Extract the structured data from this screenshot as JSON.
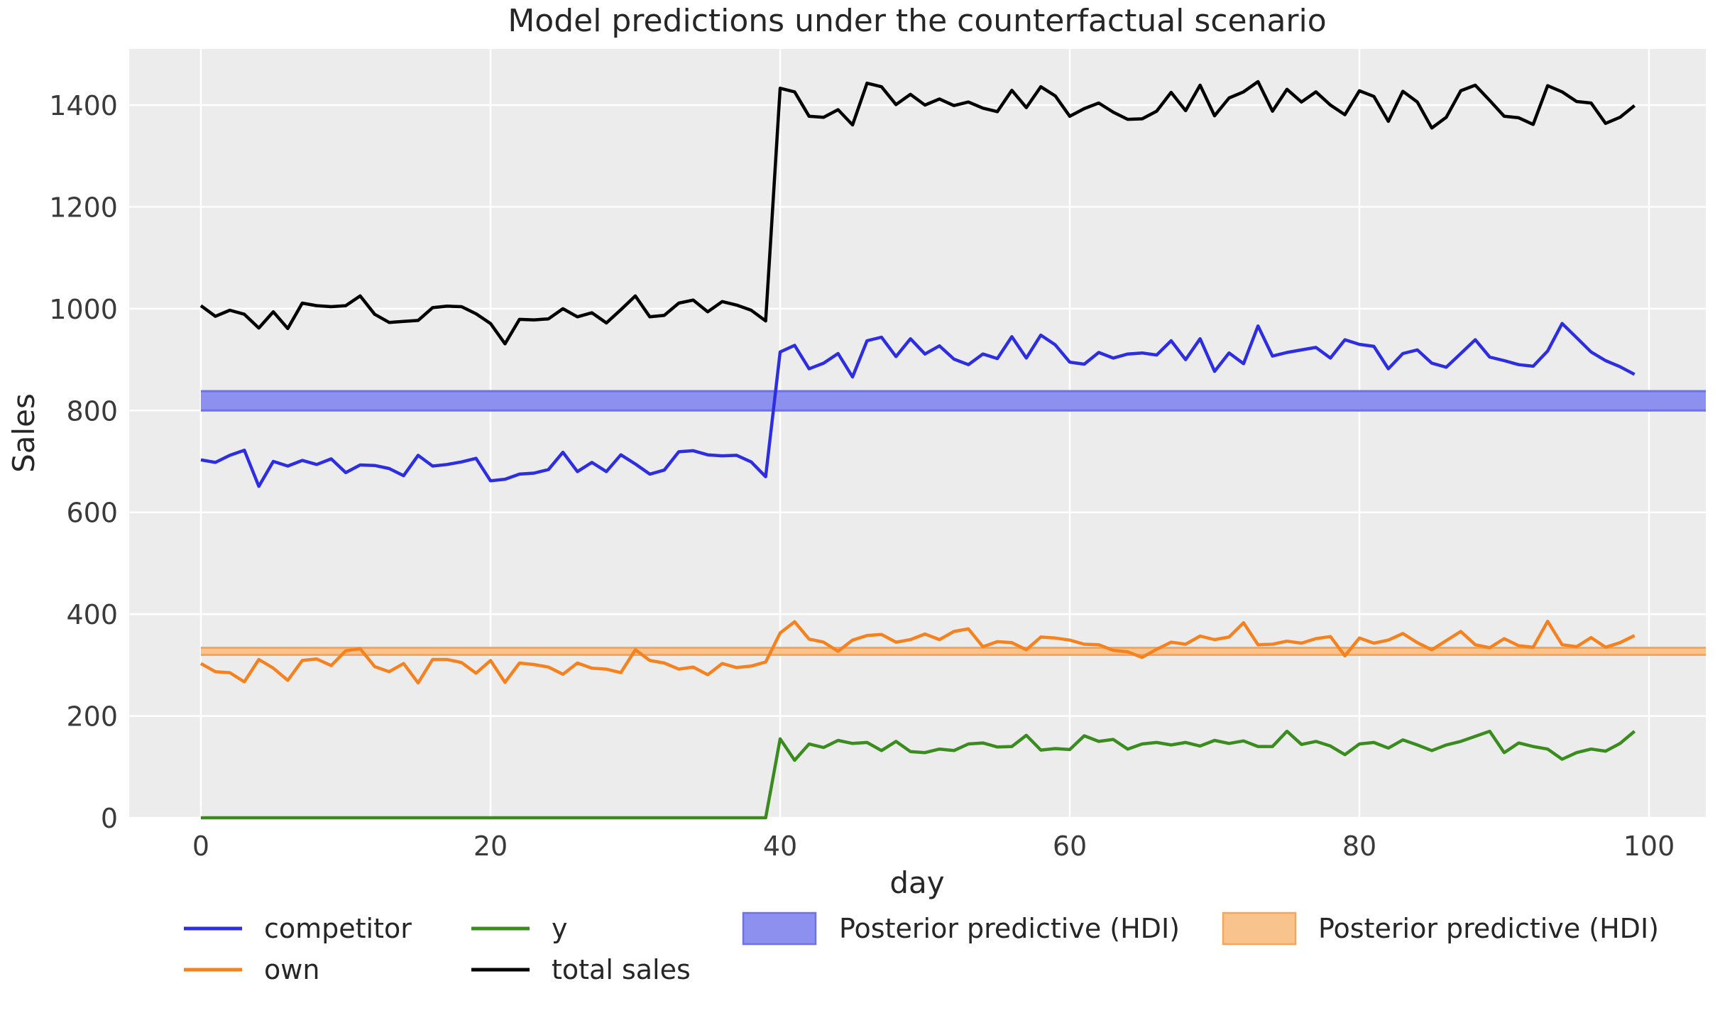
{
  "title": "Model predictions under the counterfactual scenario",
  "colors": {
    "figure_bg": "#ffffff",
    "plot_bg": "#ececec",
    "grid": "#ffffff",
    "title_text": "#262626",
    "tick_text": "#3a3a3a",
    "label_text": "#262626"
  },
  "chart_data": {
    "type": "line",
    "title": "Model predictions under the counterfactual scenario",
    "xlabel": "day",
    "ylabel": "Sales",
    "xticks": [
      0,
      20,
      40,
      60,
      80,
      100
    ],
    "yticks": [
      0,
      200,
      400,
      600,
      800,
      1000,
      1200,
      1400
    ],
    "xlim": [
      -4.95,
      103.95
    ],
    "ylim": [
      0,
      1510
    ],
    "grid": true,
    "legend_position": "bottom",
    "days": [
      0,
      1,
      2,
      3,
      4,
      5,
      6,
      7,
      8,
      9,
      10,
      11,
      12,
      13,
      14,
      15,
      16,
      17,
      18,
      19,
      20,
      21,
      22,
      23,
      24,
      25,
      26,
      27,
      28,
      29,
      30,
      31,
      32,
      33,
      34,
      35,
      36,
      37,
      38,
      39,
      40,
      41,
      42,
      43,
      44,
      45,
      46,
      47,
      48,
      49,
      50,
      51,
      52,
      53,
      54,
      55,
      56,
      57,
      58,
      59,
      60,
      61,
      62,
      63,
      64,
      65,
      66,
      67,
      68,
      69,
      70,
      71,
      72,
      73,
      74,
      75,
      76,
      77,
      78,
      79,
      80,
      81,
      82,
      83,
      84,
      85,
      86,
      87,
      88,
      89,
      90,
      91,
      92,
      93,
      94,
      95,
      96,
      97,
      98,
      99
    ],
    "series": [
      {
        "name": "competitor",
        "color": "#2d2de1",
        "values": [
          703,
          698,
          712,
          722,
          651,
          700,
          691,
          702,
          694,
          705,
          678,
          693,
          692,
          686,
          672,
          712,
          691,
          694,
          699,
          706,
          662,
          665,
          675,
          677,
          684,
          718,
          680,
          698,
          680,
          713,
          695,
          675,
          683,
          719,
          721,
          713,
          711,
          712,
          699,
          670,
          915,
          928,
          882,
          893,
          912,
          866,
          937,
          944,
          906,
          941,
          911,
          927,
          901,
          890,
          911,
          902,
          945,
          903,
          948,
          929,
          895,
          891,
          914,
          903,
          911,
          913,
          909,
          937,
          900,
          941,
          877,
          913,
          892,
          966,
          907,
          914,
          919,
          924,
          903,
          939,
          930,
          926,
          882,
          912,
          919,
          893,
          885,
          912,
          939,
          905,
          898,
          890,
          887,
          917,
          971,
          943,
          915,
          898,
          886,
          871
        ]
      },
      {
        "name": "own",
        "color": "#f5821e",
        "values": [
          303,
          287,
          285,
          267,
          311,
          294,
          270,
          309,
          312,
          299,
          328,
          332,
          297,
          287,
          303,
          265,
          311,
          311,
          305,
          284,
          309,
          266,
          304,
          301,
          296,
          282,
          304,
          294,
          292,
          285,
          330,
          309,
          304,
          292,
          296,
          281,
          303,
          295,
          298,
          306,
          363,
          385,
          351,
          345,
          327,
          349,
          358,
          360,
          345,
          350,
          361,
          350,
          366,
          371,
          336,
          346,
          344,
          330,
          355,
          353,
          349,
          341,
          340,
          329,
          326,
          315,
          331,
          345,
          341,
          357,
          350,
          355,
          383,
          340,
          341,
          347,
          343,
          352,
          356,
          318,
          353,
          343,
          349,
          362,
          344,
          330,
          348,
          366,
          340,
          334,
          352,
          338,
          335,
          386,
          340,
          336,
          354,
          335,
          344,
          358
        ]
      },
      {
        "name": "y",
        "color": "#3a8c1e",
        "values": [
          0,
          0,
          0,
          0,
          0,
          0,
          0,
          0,
          0,
          0,
          0,
          0,
          0,
          0,
          0,
          0,
          0,
          0,
          0,
          0,
          0,
          0,
          0,
          0,
          0,
          0,
          0,
          0,
          0,
          0,
          0,
          0,
          0,
          0,
          0,
          0,
          0,
          0,
          0,
          0,
          155,
          113,
          145,
          138,
          152,
          146,
          148,
          132,
          150,
          130,
          128,
          135,
          132,
          145,
          147,
          139,
          140,
          162,
          133,
          136,
          134,
          161,
          150,
          154,
          135,
          145,
          148,
          143,
          148,
          141,
          152,
          146,
          151,
          140,
          140,
          170,
          144,
          150,
          141,
          124,
          145,
          148,
          137,
          153,
          143,
          132,
          143,
          150,
          160,
          170,
          128,
          147,
          140,
          135,
          115,
          128,
          135,
          131,
          146,
          170
        ]
      },
      {
        "name": "total sales",
        "color": "#000000",
        "values": [
          1006,
          985,
          997,
          989,
          962,
          994,
          961,
          1011,
          1006,
          1004,
          1006,
          1025,
          989,
          973,
          975,
          977,
          1002,
          1005,
          1004,
          990,
          971,
          931,
          979,
          978,
          980,
          1000,
          984,
          992,
          972,
          998,
          1025,
          984,
          987,
          1011,
          1017,
          994,
          1014,
          1007,
          997,
          976,
          1433,
          1426,
          1378,
          1376,
          1391,
          1361,
          1443,
          1436,
          1401,
          1421,
          1400,
          1412,
          1399,
          1406,
          1394,
          1387,
          1429,
          1395,
          1436,
          1418,
          1378,
          1393,
          1404,
          1386,
          1372,
          1373,
          1388,
          1425,
          1389,
          1439,
          1379,
          1414,
          1426,
          1446,
          1388,
          1431,
          1406,
          1426,
          1400,
          1381,
          1428,
          1417,
          1368,
          1427,
          1406,
          1355,
          1376,
          1428,
          1439,
          1409,
          1378,
          1375,
          1362,
          1438,
          1426,
          1407,
          1404,
          1364,
          1376,
          1399
        ]
      }
    ],
    "hdi_bands": [
      {
        "label": "Posterior predictive (HDI)",
        "for_series": "competitor",
        "lo": 800,
        "hi": 838,
        "fill": "#8d90ef",
        "edge": "#6d72ea",
        "x_from_day": 0
      },
      {
        "label": "Posterior predictive (HDI)",
        "for_series": "own",
        "lo": 320,
        "hi": 334,
        "fill": "#f9c38e",
        "edge": "#f8a558",
        "x_from_day": 0
      }
    ]
  },
  "legend": {
    "entries": [
      {
        "label": "competitor"
      },
      {
        "label": "own"
      },
      {
        "label": "y"
      },
      {
        "label": "total sales"
      },
      {
        "label": "Posterior predictive (HDI)"
      },
      {
        "label": "Posterior predictive (HDI)"
      }
    ]
  }
}
